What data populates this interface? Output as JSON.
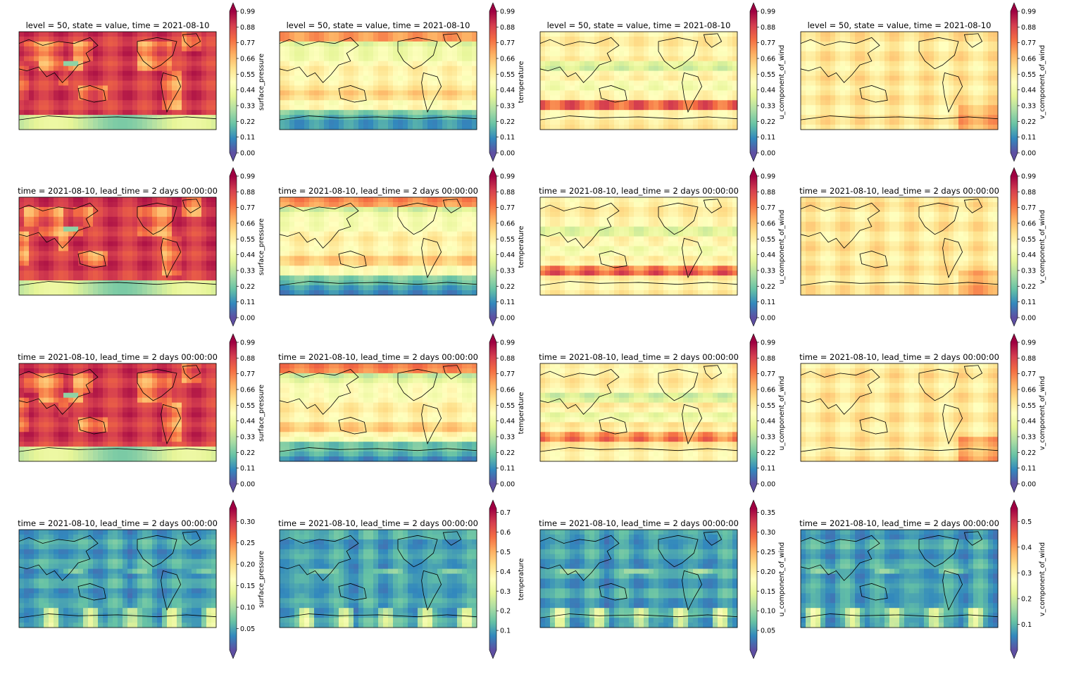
{
  "figure": {
    "rows": [
      {
        "title": "level = 50, state = value, time = 2021-08-10",
        "panels": [
          {
            "variable": "surface_pressure",
            "field": "sp",
            "cbar": {
              "ticks": [
                "0.00",
                "0.11",
                "0.22",
                "0.33",
                "0.44",
                "0.55",
                "0.66",
                "0.77",
                "0.88",
                "0.99"
              ],
              "max": 0.99
            }
          },
          {
            "variable": "temperature",
            "field": "t",
            "cbar": {
              "ticks": [
                "0.00",
                "0.11",
                "0.22",
                "0.33",
                "0.44",
                "0.55",
                "0.66",
                "0.77",
                "0.88",
                "0.99"
              ],
              "max": 0.99
            }
          },
          {
            "variable": "u_component_of_wind",
            "field": "u",
            "cbar": {
              "ticks": [
                "0.00",
                "0.11",
                "0.22",
                "0.33",
                "0.44",
                "0.55",
                "0.66",
                "0.77",
                "0.88",
                "0.99"
              ],
              "max": 0.99
            }
          },
          {
            "variable": "v_component_of_wind",
            "field": "v",
            "cbar": {
              "ticks": [
                "0.00",
                "0.11",
                "0.22",
                "0.33",
                "0.44",
                "0.55",
                "0.66",
                "0.77",
                "0.88",
                "0.99"
              ],
              "max": 0.99
            }
          }
        ]
      },
      {
        "title": "time = 2021-08-10, lead_time = 2 days 00:00:00",
        "panels": [
          {
            "variable": "surface_pressure",
            "field": "sp",
            "cbar": {
              "ticks": [
                "0.00",
                "0.11",
                "0.22",
                "0.33",
                "0.44",
                "0.55",
                "0.66",
                "0.77",
                "0.88",
                "0.99"
              ],
              "max": 0.99
            }
          },
          {
            "variable": "temperature",
            "field": "t",
            "cbar": {
              "ticks": [
                "0.00",
                "0.11",
                "0.22",
                "0.33",
                "0.44",
                "0.55",
                "0.66",
                "0.77",
                "0.88",
                "0.99"
              ],
              "max": 0.99
            }
          },
          {
            "variable": "u_component_of_wind",
            "field": "u",
            "cbar": {
              "ticks": [
                "0.00",
                "0.11",
                "0.22",
                "0.33",
                "0.44",
                "0.55",
                "0.66",
                "0.77",
                "0.88",
                "0.99"
              ],
              "max": 0.99
            }
          },
          {
            "variable": "v_component_of_wind",
            "field": "v",
            "cbar": {
              "ticks": [
                "0.00",
                "0.11",
                "0.22",
                "0.33",
                "0.44",
                "0.55",
                "0.66",
                "0.77",
                "0.88",
                "0.99"
              ],
              "max": 0.99
            }
          }
        ]
      },
      {
        "title": "time = 2021-08-10, lead_time = 2 days 00:00:00",
        "panels": [
          {
            "variable": "surface_pressure",
            "field": "sp",
            "cbar": {
              "ticks": [
                "0.00",
                "0.11",
                "0.22",
                "0.33",
                "0.44",
                "0.55",
                "0.66",
                "0.77",
                "0.88",
                "0.99"
              ],
              "max": 0.99
            }
          },
          {
            "variable": "temperature",
            "field": "t",
            "cbar": {
              "ticks": [
                "0.00",
                "0.11",
                "0.22",
                "0.33",
                "0.44",
                "0.55",
                "0.66",
                "0.77",
                "0.88",
                "0.99"
              ],
              "max": 0.99
            }
          },
          {
            "variable": "u_component_of_wind",
            "field": "u",
            "cbar": {
              "ticks": [
                "0.00",
                "0.11",
                "0.22",
                "0.33",
                "0.44",
                "0.55",
                "0.66",
                "0.77",
                "0.88",
                "0.99"
              ],
              "max": 0.99
            }
          },
          {
            "variable": "v_component_of_wind",
            "field": "v",
            "cbar": {
              "ticks": [
                "0.00",
                "0.11",
                "0.22",
                "0.33",
                "0.44",
                "0.55",
                "0.66",
                "0.77",
                "0.88",
                "0.99"
              ],
              "max": 0.99
            }
          }
        ]
      },
      {
        "title": "time = 2021-08-10, lead_time = 2 days 00:00:00",
        "panels": [
          {
            "variable": "surface_pressure",
            "field": "err",
            "cbar": {
              "ticks": [
                "0.05",
                "0.10",
                "0.15",
                "0.20",
                "0.25",
                "0.30"
              ],
              "max": 0.33
            }
          },
          {
            "variable": "temperature",
            "field": "err",
            "cbar": {
              "ticks": [
                "0.1",
                "0.2",
                "0.3",
                "0.4",
                "0.5",
                "0.6",
                "0.7"
              ],
              "max": 0.72
            }
          },
          {
            "variable": "u_component_of_wind",
            "field": "err",
            "cbar": {
              "ticks": [
                "0.05",
                "0.10",
                "0.15",
                "0.20",
                "0.25",
                "0.30",
                "0.35"
              ],
              "max": 0.36
            }
          },
          {
            "variable": "v_component_of_wind",
            "field": "err",
            "cbar": {
              "ticks": [
                "0.1",
                "0.2",
                "0.3",
                "0.4",
                "0.5"
              ],
              "max": 0.55
            }
          }
        ]
      }
    ],
    "colormap": "Spectral_r",
    "colormap_stops": [
      "#5e4fa2",
      "#3288bd",
      "#66c2a5",
      "#abdda4",
      "#e6f598",
      "#ffffbf",
      "#fee08b",
      "#fdae61",
      "#f46d43",
      "#d53e4f",
      "#9e0142"
    ]
  },
  "chart_data": {
    "type": "heatmap",
    "projection": "PlateCarree (Pacific-centered world map with coastlines)",
    "grid": "4 rows x 4 columns",
    "variables": [
      "surface_pressure",
      "temperature",
      "u_component_of_wind",
      "v_component_of_wind"
    ],
    "row_titles": [
      "level = 50, state = value, time = 2021-08-10",
      "time = 2021-08-10, lead_time = 2 days 00:00:00",
      "time = 2021-08-10, lead_time = 2 days 00:00:00",
      "time = 2021-08-10, lead_time = 2 days 00:00:00"
    ],
    "colorbar_ranges": [
      [
        [
          0.0,
          0.99
        ],
        [
          0.0,
          0.99
        ],
        [
          0.0,
          0.99
        ],
        [
          0.0,
          0.99
        ]
      ],
      [
        [
          0.0,
          0.99
        ],
        [
          0.0,
          0.99
        ],
        [
          0.0,
          0.99
        ],
        [
          0.0,
          0.99
        ]
      ],
      [
        [
          0.0,
          0.99
        ],
        [
          0.0,
          0.99
        ],
        [
          0.0,
          0.99
        ],
        [
          0.0,
          0.99
        ]
      ],
      [
        [
          0.0,
          0.33
        ],
        [
          0.0,
          0.72
        ],
        [
          0.0,
          0.36
        ],
        [
          0.0,
          0.55
        ]
      ]
    ],
    "colorbar_extend": "both"
  }
}
